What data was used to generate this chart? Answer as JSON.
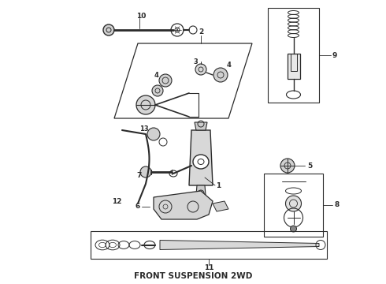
{
  "title": "FRONT SUSPENSION 2WD",
  "title_fontsize": 7.5,
  "title_fontweight": "bold",
  "background_color": "#ffffff",
  "line_color": "#2a2a2a",
  "fig_width": 4.9,
  "fig_height": 3.6,
  "dpi": 100
}
